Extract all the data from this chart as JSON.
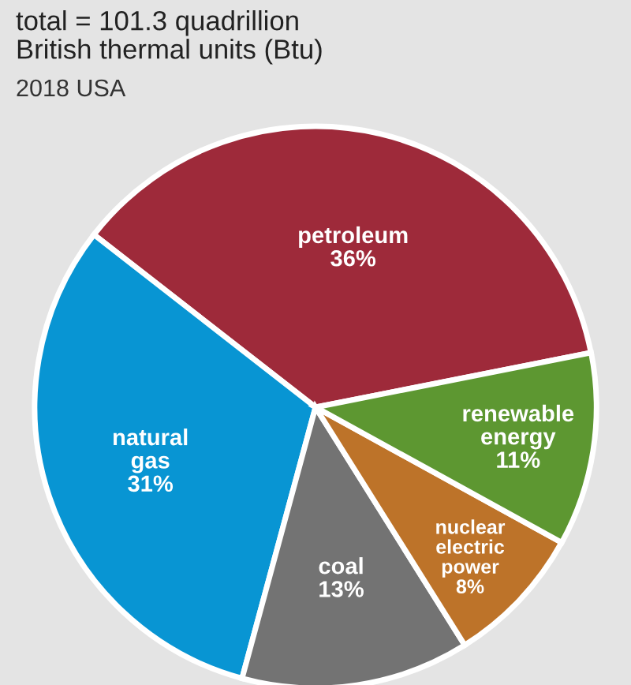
{
  "chart_data": {
    "type": "pie",
    "title": "total = 101.3 quadrillion\nBritish thermal units (Btu)",
    "subtitle": "2018 USA",
    "categories": [
      "petroleum",
      "natural\ngas",
      "coal",
      "nuclear\nelectric\npower",
      "renewable\nenergy"
    ],
    "values": [
      36,
      31,
      13,
      8,
      11
    ],
    "value_labels": [
      "36%",
      "31%",
      "13%",
      "8%",
      "11%"
    ],
    "colors": [
      "#9e2a3a",
      "#0895d3",
      "#737373",
      "#bd7329",
      "#5d9731"
    ],
    "legend": false
  }
}
